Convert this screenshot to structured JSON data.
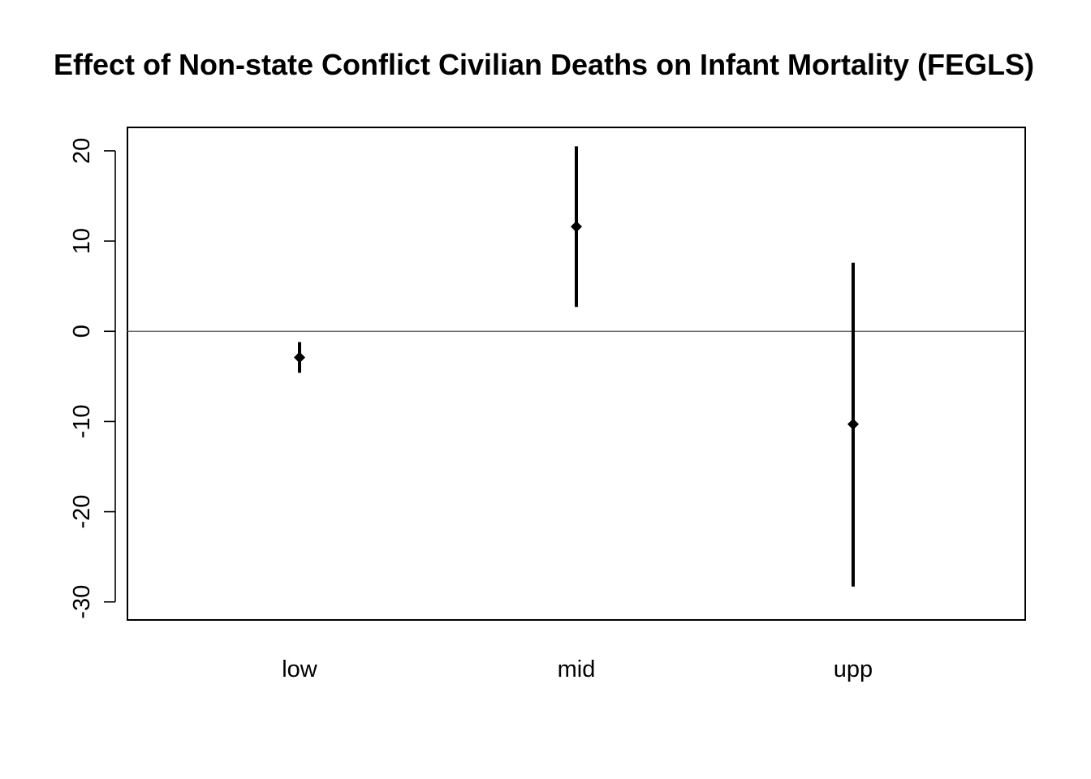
{
  "chart_data": {
    "type": "errorbar",
    "title": "Effect of Non-state Conflict Civilian Deaths on Infant Mortality (FEGLS)",
    "xlabel": "",
    "ylabel": "",
    "categories": [
      "low",
      "mid",
      "upp"
    ],
    "points": [
      {
        "category": "low",
        "estimate": -2.9,
        "lower": -4.6,
        "upper": -1.2
      },
      {
        "category": "mid",
        "estimate": 11.6,
        "lower": 2.7,
        "upper": 20.5
      },
      {
        "category": "upp",
        "estimate": -10.3,
        "lower": -28.3,
        "upper": 7.6
      }
    ],
    "ylim": [
      -32,
      22.6
    ],
    "y_ticks": [
      -30,
      -20,
      -10,
      0,
      10,
      20
    ],
    "y_tick_labels": [
      "-30",
      "-20",
      "-10",
      "0",
      "10",
      "20"
    ],
    "reference_line": 0,
    "grid": false,
    "legend": "none",
    "colors": {
      "marks": "#000000",
      "reference_line": "#555555",
      "frame": "#000000"
    }
  }
}
